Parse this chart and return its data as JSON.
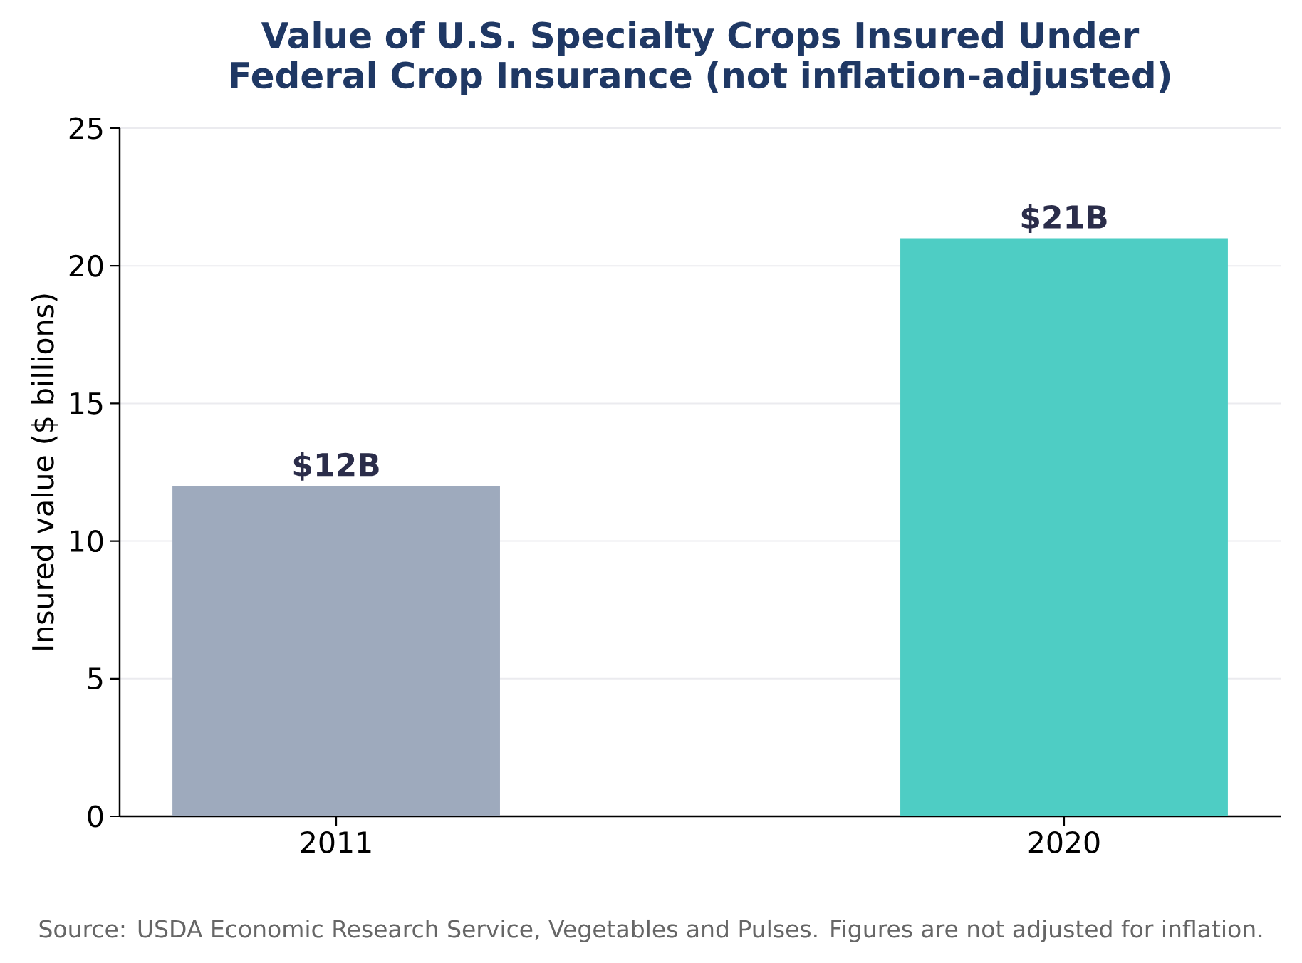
{
  "chart_data": {
    "type": "bar",
    "title": "Value of U.S. Specialty Crops Insured Under Federal Crop Insurance (not inflation-adjusted)",
    "ylabel": "Insured value ($ billions)",
    "annotations": [
      "Source: USDA Economic Research Service, Vegetables and Pulses. Figures are not adjusted for inflation."
    ],
    "categories": [
      "2011",
      "2020"
    ],
    "values": [
      12,
      21
    ],
    "colors": [
      "#9eaabd",
      "#4ecdc4"
    ],
    "value_labels": [
      "$12B",
      "$21B"
    ],
    "ylim": [
      0,
      25
    ],
    "yticks": [
      0,
      5,
      10,
      15,
      20,
      25
    ],
    "grid": "y"
  }
}
